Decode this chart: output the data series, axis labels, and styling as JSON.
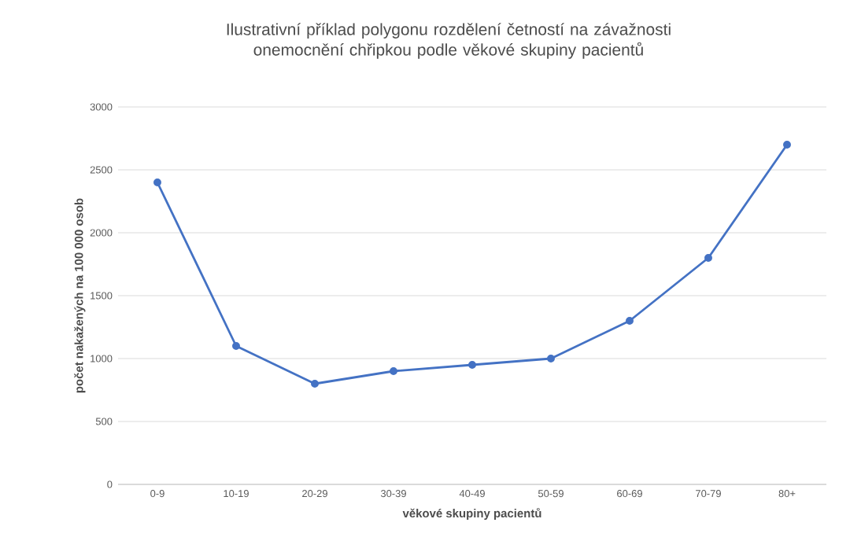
{
  "chart_data": {
    "type": "line",
    "title": "Ilustrativní příklad polygonu rozdělení četností na závažnosti onemocnění chřipkou podle věkové skupiny pacientů",
    "xlabel": "věkové skupiny pacientů",
    "ylabel": "počet nakažených na 100 000 osob",
    "categories": [
      "0-9",
      "10-19",
      "20-29",
      "30-39",
      "40-49",
      "50-59",
      "60-69",
      "70-79",
      "80+"
    ],
    "series": [
      {
        "color": "#4472c4",
        "values": [
          2400,
          1100,
          800,
          900,
          950,
          1000,
          1300,
          1800,
          2700
        ]
      }
    ],
    "ylim": [
      0,
      3000
    ],
    "yticks": [
      0,
      500,
      1000,
      1500,
      2000,
      2500,
      3000
    ],
    "grid": "y",
    "marker": "circle",
    "line_style": "solid"
  }
}
